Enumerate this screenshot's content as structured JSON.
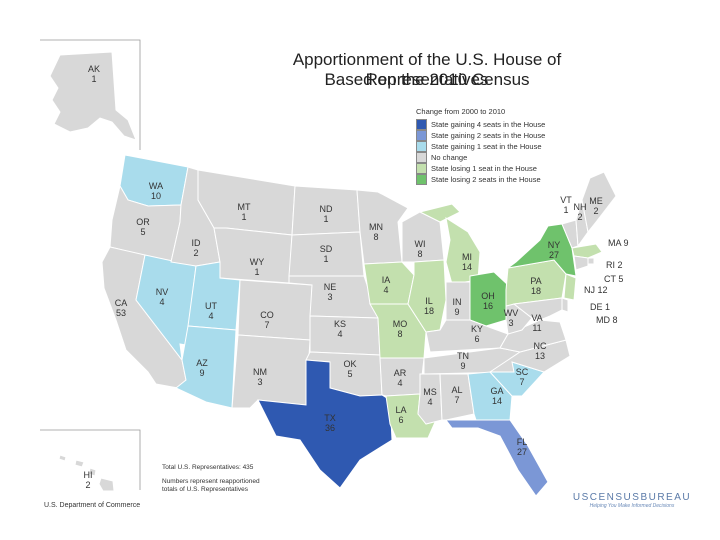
{
  "title": {
    "line1": "Apportionment of the U.S. House of Representatives",
    "line2": "Based on the 2010 Census"
  },
  "legend": {
    "title": "Change from 2000 to 2010",
    "items": [
      {
        "key": "g4",
        "label": "State gaining 4 seats in the House",
        "color": "#2f59b1"
      },
      {
        "key": "g2",
        "label": "State gaining 2 seats in the House",
        "color": "#7b97d6"
      },
      {
        "key": "g1",
        "label": "State gaining 1 seat in the House",
        "color": "#a9dcec"
      },
      {
        "key": "nc",
        "label": "No change",
        "color": "#d8d8d8"
      },
      {
        "key": "l1",
        "label": "State losing 1 seat in the House",
        "color": "#c3e0ae"
      },
      {
        "key": "l2",
        "label": "State losing 2 seats in the House",
        "color": "#6fc26c"
      }
    ]
  },
  "states": [
    {
      "abbr": "AK",
      "seats": "1",
      "cat": "nc"
    },
    {
      "abbr": "HI",
      "seats": "2",
      "cat": "nc"
    },
    {
      "abbr": "WA",
      "seats": "10",
      "cat": "g1"
    },
    {
      "abbr": "OR",
      "seats": "5",
      "cat": "nc"
    },
    {
      "abbr": "CA",
      "seats": "53",
      "cat": "nc"
    },
    {
      "abbr": "NV",
      "seats": "4",
      "cat": "g1"
    },
    {
      "abbr": "ID",
      "seats": "2",
      "cat": "nc"
    },
    {
      "abbr": "MT",
      "seats": "1",
      "cat": "nc"
    },
    {
      "abbr": "WY",
      "seats": "1",
      "cat": "nc"
    },
    {
      "abbr": "UT",
      "seats": "4",
      "cat": "g1"
    },
    {
      "abbr": "AZ",
      "seats": "9",
      "cat": "g1"
    },
    {
      "abbr": "CO",
      "seats": "7",
      "cat": "nc"
    },
    {
      "abbr": "NM",
      "seats": "3",
      "cat": "nc"
    },
    {
      "abbr": "ND",
      "seats": "1",
      "cat": "nc"
    },
    {
      "abbr": "SD",
      "seats": "1",
      "cat": "nc"
    },
    {
      "abbr": "NE",
      "seats": "3",
      "cat": "nc"
    },
    {
      "abbr": "KS",
      "seats": "4",
      "cat": "nc"
    },
    {
      "abbr": "OK",
      "seats": "5",
      "cat": "nc"
    },
    {
      "abbr": "TX",
      "seats": "36",
      "cat": "g4"
    },
    {
      "abbr": "MN",
      "seats": "8",
      "cat": "nc"
    },
    {
      "abbr": "IA",
      "seats": "4",
      "cat": "l1"
    },
    {
      "abbr": "MO",
      "seats": "8",
      "cat": "l1"
    },
    {
      "abbr": "AR",
      "seats": "4",
      "cat": "nc"
    },
    {
      "abbr": "LA",
      "seats": "6",
      "cat": "l1"
    },
    {
      "abbr": "WI",
      "seats": "8",
      "cat": "nc"
    },
    {
      "abbr": "IL",
      "seats": "18",
      "cat": "l1"
    },
    {
      "abbr": "MI",
      "seats": "14",
      "cat": "l1"
    },
    {
      "abbr": "IN",
      "seats": "9",
      "cat": "nc"
    },
    {
      "abbr": "OH",
      "seats": "16",
      "cat": "l2"
    },
    {
      "abbr": "KY",
      "seats": "6",
      "cat": "nc"
    },
    {
      "abbr": "TN",
      "seats": "9",
      "cat": "nc"
    },
    {
      "abbr": "MS",
      "seats": "4",
      "cat": "nc"
    },
    {
      "abbr": "AL",
      "seats": "7",
      "cat": "nc"
    },
    {
      "abbr": "GA",
      "seats": "14",
      "cat": "g1"
    },
    {
      "abbr": "FL",
      "seats": "27",
      "cat": "g2"
    },
    {
      "abbr": "SC",
      "seats": "7",
      "cat": "g1"
    },
    {
      "abbr": "NC",
      "seats": "13",
      "cat": "nc"
    },
    {
      "abbr": "VA",
      "seats": "11",
      "cat": "nc"
    },
    {
      "abbr": "WV",
      "seats": "3",
      "cat": "nc"
    },
    {
      "abbr": "PA",
      "seats": "18",
      "cat": "l1"
    },
    {
      "abbr": "NY",
      "seats": "27",
      "cat": "l2"
    },
    {
      "abbr": "VT",
      "seats": "1",
      "cat": "nc"
    },
    {
      "abbr": "NH",
      "seats": "2",
      "cat": "nc"
    },
    {
      "abbr": "ME",
      "seats": "2",
      "cat": "nc"
    },
    {
      "abbr": "MA",
      "seats": "9",
      "cat": "l1"
    },
    {
      "abbr": "RI",
      "seats": "2",
      "cat": "nc"
    },
    {
      "abbr": "CT",
      "seats": "5",
      "cat": "nc"
    },
    {
      "abbr": "NJ",
      "seats": "12",
      "cat": "l1"
    },
    {
      "abbr": "DE",
      "seats": "1",
      "cat": "nc"
    },
    {
      "abbr": "MD",
      "seats": "8",
      "cat": "nc"
    }
  ],
  "footer": {
    "total": "Total U.S. Representatives: 435",
    "note_line1": "Numbers represent reapportioned",
    "note_line2": "totals of U.S. Representatives",
    "department": "U.S. Department of Commerce",
    "bureau": "USCENSUSBUREAU",
    "tagline": "Helping You Make Informed Decisions"
  }
}
